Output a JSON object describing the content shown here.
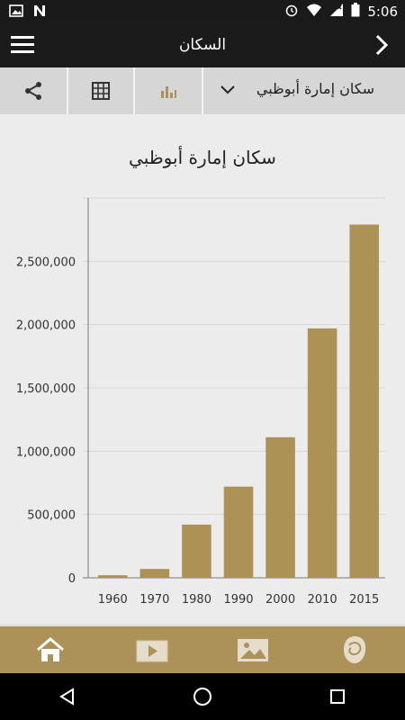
{
  "status_bar": {
    "time": "5:06"
  },
  "app_bar": {
    "title": "السكان"
  },
  "toolbar": {
    "selected_dataset": "سكان إمارة أبوظبي"
  },
  "colors": {
    "accent": "#ac9258",
    "bar": "#ad9256",
    "app_bar": "#1b1b1b"
  },
  "chart_data": {
    "type": "bar",
    "title": "سكان إمارة أبوظبي",
    "xlabel": "",
    "ylabel": "",
    "categories": [
      "1960",
      "1970",
      "1980",
      "1990",
      "2000",
      "2010",
      "2015"
    ],
    "values": [
      20000,
      70000,
      420000,
      720000,
      1110000,
      1970000,
      2790000
    ],
    "ylim": [
      0,
      3000000
    ],
    "yticks": [
      0,
      500000,
      1000000,
      1500000,
      2000000,
      2500000
    ],
    "ytick_labels": [
      "0",
      "500,000",
      "1,000,000",
      "1,500,000",
      "2,000,000",
      "2,500,000"
    ],
    "grid": true
  },
  "bottom_nav": {
    "items": [
      "home-icon",
      "video-icon",
      "photo-gallery-icon",
      "emblem-icon"
    ]
  },
  "system_nav": {
    "items": [
      "back-icon",
      "home-circle-icon",
      "recents-icon"
    ]
  }
}
